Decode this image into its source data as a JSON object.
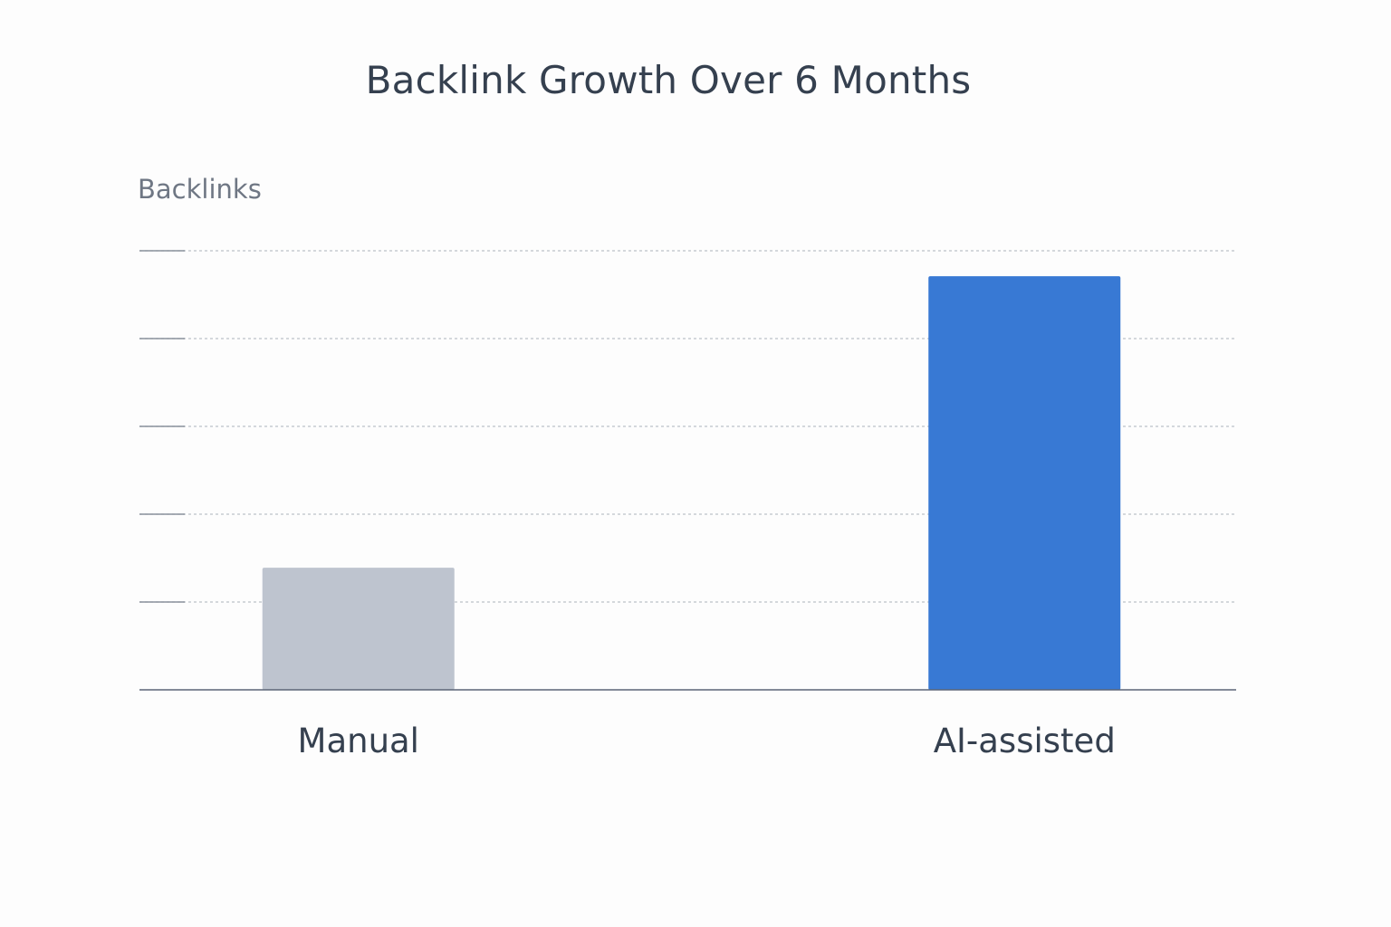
{
  "chart_data": {
    "type": "bar",
    "title": "Backlink Growth Over 6 Months",
    "xlabel": "",
    "ylabel": "Backlinks",
    "categories": [
      "Manual",
      "AI-assisted"
    ],
    "values": [
      1.39,
      4.71
    ],
    "ylim": [
      0,
      5
    ],
    "yticks": [
      1,
      2,
      3,
      4,
      5
    ],
    "ytick_labels_visible": false,
    "grid": true,
    "grid_style": "dotted",
    "legend": "none",
    "colors": [
      "#bec4cf",
      "#3879d4"
    ],
    "colors_meta": {
      "background": "#fdfdfd",
      "axis": "#5b6576",
      "grid": "#bcc1c8",
      "text": "#35404f",
      "ylabel_text": "#6f7784"
    }
  }
}
